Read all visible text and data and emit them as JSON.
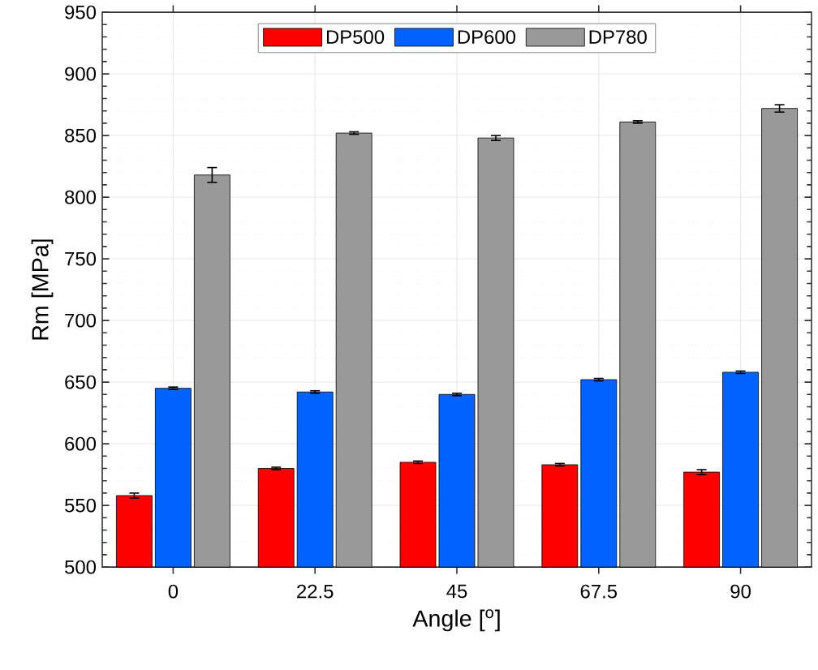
{
  "chart_data": {
    "type": "bar",
    "xlabel": "Angle [$^{o}$]",
    "ylabel": "Rm [MPa]",
    "categories": [
      "0",
      "22.5",
      "45",
      "67.5",
      "90"
    ],
    "series": [
      {
        "name": "DP500",
        "color": "#ff0000",
        "values": [
          558,
          580,
          585,
          583,
          577
        ],
        "errors": [
          2,
          1,
          1,
          1,
          2
        ]
      },
      {
        "name": "DP600",
        "color": "#0062ff",
        "values": [
          645,
          642,
          640,
          652,
          658
        ],
        "errors": [
          1,
          1,
          1,
          1,
          1
        ]
      },
      {
        "name": "DP780",
        "color": "#999999",
        "values": [
          818,
          852,
          848,
          861,
          872
        ],
        "errors": [
          6,
          1,
          2,
          1,
          3
        ]
      }
    ],
    "ylim": [
      500,
      950
    ],
    "yticks": [
      500,
      550,
      600,
      650,
      700,
      750,
      800,
      850,
      900,
      950
    ],
    "grid": true,
    "legend": "top"
  }
}
